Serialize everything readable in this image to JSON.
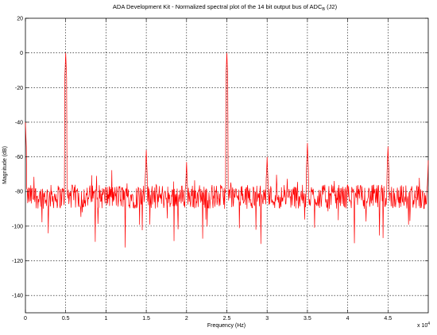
{
  "chart_data": {
    "type": "line",
    "title": "ADA Development Kit - Normalized spectral plot of the 14 bit output bus of ADC",
    "title_subscript": "B",
    "title_suffix": " (J2)",
    "xlabel": "Frequency (Hz)",
    "ylabel": "Magnitude (dB)",
    "x_multiplier_label": "x 10",
    "x_multiplier_exponent": "4",
    "xlim": [
      0,
      5
    ],
    "ylim": [
      -150,
      20
    ],
    "x_ticks": [
      0,
      0.5,
      1,
      1.5,
      2,
      2.5,
      3,
      3.5,
      4,
      4.5
    ],
    "x_tick_labels": [
      "0",
      "0.5",
      "1",
      "1.5",
      "2",
      "2.5",
      "3",
      "3.5",
      "4",
      "4.5"
    ],
    "y_ticks": [
      20,
      0,
      -20,
      -40,
      -60,
      -80,
      -100,
      -120,
      -140
    ],
    "y_tick_labels": [
      "20",
      "0",
      "-20",
      "-40",
      "-60",
      "-80",
      "-100",
      "-120",
      "-140"
    ],
    "grid": true,
    "line_color": "#ff0000",
    "noise_floor_db": -83,
    "series": [
      {
        "peaks": [
          {
            "x": 0.0,
            "y": -40
          },
          {
            "x": 0.5,
            "y": 0
          },
          {
            "x": 1.0,
            "y": -78
          },
          {
            "x": 1.5,
            "y": -56
          },
          {
            "x": 2.0,
            "y": -63
          },
          {
            "x": 2.5,
            "y": 0
          },
          {
            "x": 3.0,
            "y": -60
          },
          {
            "x": 3.5,
            "y": -52
          },
          {
            "x": 4.0,
            "y": -76
          },
          {
            "x": 4.5,
            "y": -54
          },
          {
            "x": 5.0,
            "y": -62
          }
        ]
      }
    ]
  }
}
